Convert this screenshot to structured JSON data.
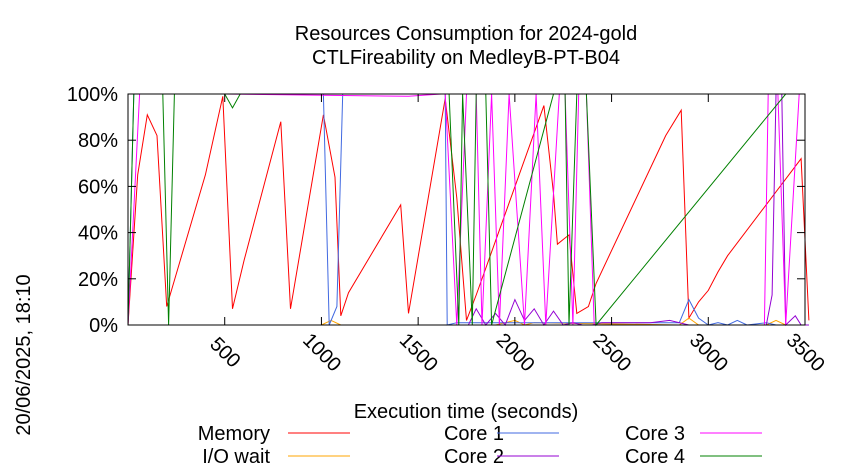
{
  "chart_data": {
    "type": "line",
    "title_line1": "Resources Consumption for 2024-gold",
    "title_line2": "CTLFireability on MedleyB-PT-B04",
    "xlabel": "Execution time (seconds)",
    "ylabel": "",
    "side_stamp": "20/06/2025, 18:10",
    "xlim": [
      0,
      3500
    ],
    "ylim": [
      0,
      100
    ],
    "x_ticks": [
      500,
      1000,
      1500,
      2000,
      2500,
      3000,
      3500
    ],
    "x_tick_labels": [
      "500",
      "1000",
      "1500",
      "2000",
      "2500",
      "3000",
      "3500"
    ],
    "y_ticks": [
      0,
      20,
      40,
      60,
      80,
      100
    ],
    "y_tick_labels": [
      "0%",
      "20%",
      "40%",
      "60%",
      "80%",
      "100%"
    ],
    "grid": false,
    "legend_position": "bottom",
    "series": [
      {
        "name": "Memory",
        "color": "#ff0000",
        "x": [
          0,
          50,
          100,
          150,
          200,
          400,
          490,
          540,
          600,
          790,
          840,
          1010,
          1070,
          1100,
          1140,
          1410,
          1450,
          1640,
          1700,
          1750,
          1800,
          2150,
          2200,
          2220,
          2250,
          2280,
          2320,
          2380,
          2420,
          2780,
          2860,
          2900,
          2950,
          3000,
          3050,
          3100,
          3480,
          3520
        ],
        "values": [
          0,
          65,
          91,
          82,
          8,
          65,
          99,
          7,
          28,
          88,
          7,
          91,
          64,
          4,
          14,
          52,
          5,
          98,
          55,
          2,
          13,
          95,
          57,
          35,
          37,
          39,
          5,
          8,
          18,
          82,
          93,
          3,
          10,
          15,
          23,
          30,
          72,
          2
        ]
      },
      {
        "name": "I/O wait",
        "color": "#ffa500",
        "x": [
          0,
          1000,
          1050,
          1100,
          1900,
          1950,
          2000,
          2050,
          2100,
          2850,
          2900,
          2950,
          3300,
          3350,
          3400,
          3520
        ],
        "values": [
          0,
          0,
          2,
          0,
          0,
          1,
          2,
          0,
          1,
          0,
          3,
          0,
          0,
          2,
          0,
          0
        ]
      },
      {
        "name": "Core 1",
        "color": "#4169e1",
        "x": [
          0,
          30,
          50,
          1010,
          1040,
          1080,
          1110,
          1170,
          1640,
          1650,
          1700,
          2000,
          2500,
          2850,
          2900,
          2950,
          3000,
          3050,
          3100,
          3150,
          3200,
          3300,
          3350,
          3400,
          3520
        ],
        "values": [
          0,
          100,
          100,
          100,
          0,
          8,
          100,
          100,
          100,
          0,
          1,
          1,
          1,
          1,
          11,
          3,
          0,
          1,
          0,
          2,
          0,
          1,
          0,
          0,
          0
        ]
      },
      {
        "name": "Core 2",
        "color": "#9400d3",
        "x": [
          0,
          1640,
          1700,
          1760,
          1800,
          1850,
          1900,
          1950,
          2000,
          2050,
          2100,
          2150,
          2200,
          2250,
          2300,
          2350,
          2400,
          2450,
          2500,
          2700,
          2800,
          2900,
          3000,
          3300,
          3330,
          3350,
          3380,
          3400,
          3450,
          3480,
          3520
        ],
        "values": [
          0,
          0,
          0,
          0,
          7,
          0,
          5,
          0,
          11,
          2,
          7,
          0,
          6,
          0,
          1,
          0,
          0,
          1,
          1,
          1,
          2,
          0,
          0,
          0,
          13,
          100,
          100,
          0,
          4,
          0,
          0
        ]
      },
      {
        "name": "Core 3",
        "color": "#ff00ff",
        "x": [
          0,
          60,
          80,
          200,
          230,
          500,
          1450,
          1620,
          1640,
          1700,
          1750,
          1800,
          1830,
          1880,
          1920,
          1970,
          2050,
          2110,
          2160,
          2230,
          2260,
          2300,
          2330,
          2370,
          2410,
          2460,
          3290,
          3310,
          3360,
          3400,
          3470,
          3500
        ],
        "values": [
          0,
          100,
          100,
          100,
          100,
          100,
          99,
          100,
          100,
          0,
          100,
          100,
          0,
          100,
          0,
          100,
          0,
          100,
          0,
          100,
          100,
          0,
          100,
          100,
          0,
          0,
          0,
          100,
          100,
          0,
          100,
          100
        ]
      },
      {
        "name": "Core 4",
        "color": "#008000",
        "x": [
          0,
          30,
          50,
          180,
          210,
          240,
          260,
          500,
          540,
          580,
          1450,
          1640,
          1660,
          1710,
          1730,
          1780,
          1800,
          1850,
          1880,
          2200,
          2260,
          2280,
          2320,
          2370,
          2420,
          3400,
          3500
        ],
        "values": [
          0,
          100,
          100,
          100,
          0,
          100,
          100,
          100,
          94,
          100,
          100,
          100,
          100,
          0,
          100,
          0,
          100,
          100,
          0,
          100,
          100,
          0,
          100,
          100,
          0,
          100,
          100
        ]
      }
    ]
  }
}
